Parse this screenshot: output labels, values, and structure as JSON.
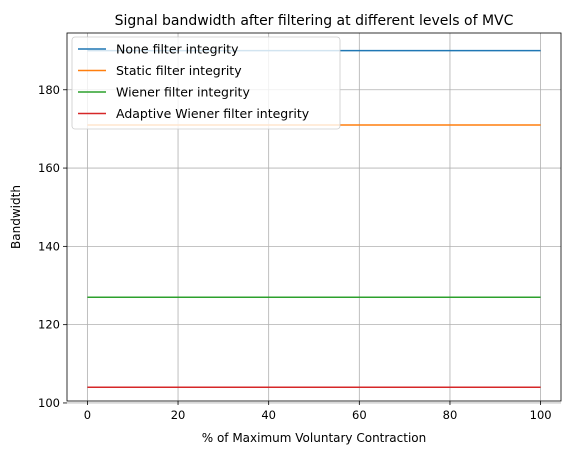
{
  "chart_data": {
    "type": "line",
    "title": "Signal bandwidth after filtering at different levels of MVC",
    "xlabel": "% of Maximum Voluntary Contraction",
    "ylabel": "Bandwidth",
    "xlim": [
      -4.5,
      104.5
    ],
    "ylim": [
      100.5,
      194.5
    ],
    "xticks": [
      0,
      20,
      40,
      60,
      80,
      100
    ],
    "yticks": [
      100,
      120,
      140,
      160,
      180
    ],
    "grid": true,
    "legend_position": "top-left",
    "series": [
      {
        "name": "None filter integrity",
        "color": "#1f77b4",
        "x": [
          0,
          100
        ],
        "y": [
          190,
          190
        ]
      },
      {
        "name": "Static filter integrity",
        "color": "#ff7f0e",
        "x": [
          0,
          100
        ],
        "y": [
          171,
          171
        ]
      },
      {
        "name": "Wiener filter integrity",
        "color": "#2ca02c",
        "x": [
          0,
          100
        ],
        "y": [
          127,
          127
        ]
      },
      {
        "name": "Adaptive Wiener filter integrity",
        "color": "#d62728",
        "x": [
          0,
          100
        ],
        "y": [
          104,
          104
        ]
      }
    ]
  }
}
